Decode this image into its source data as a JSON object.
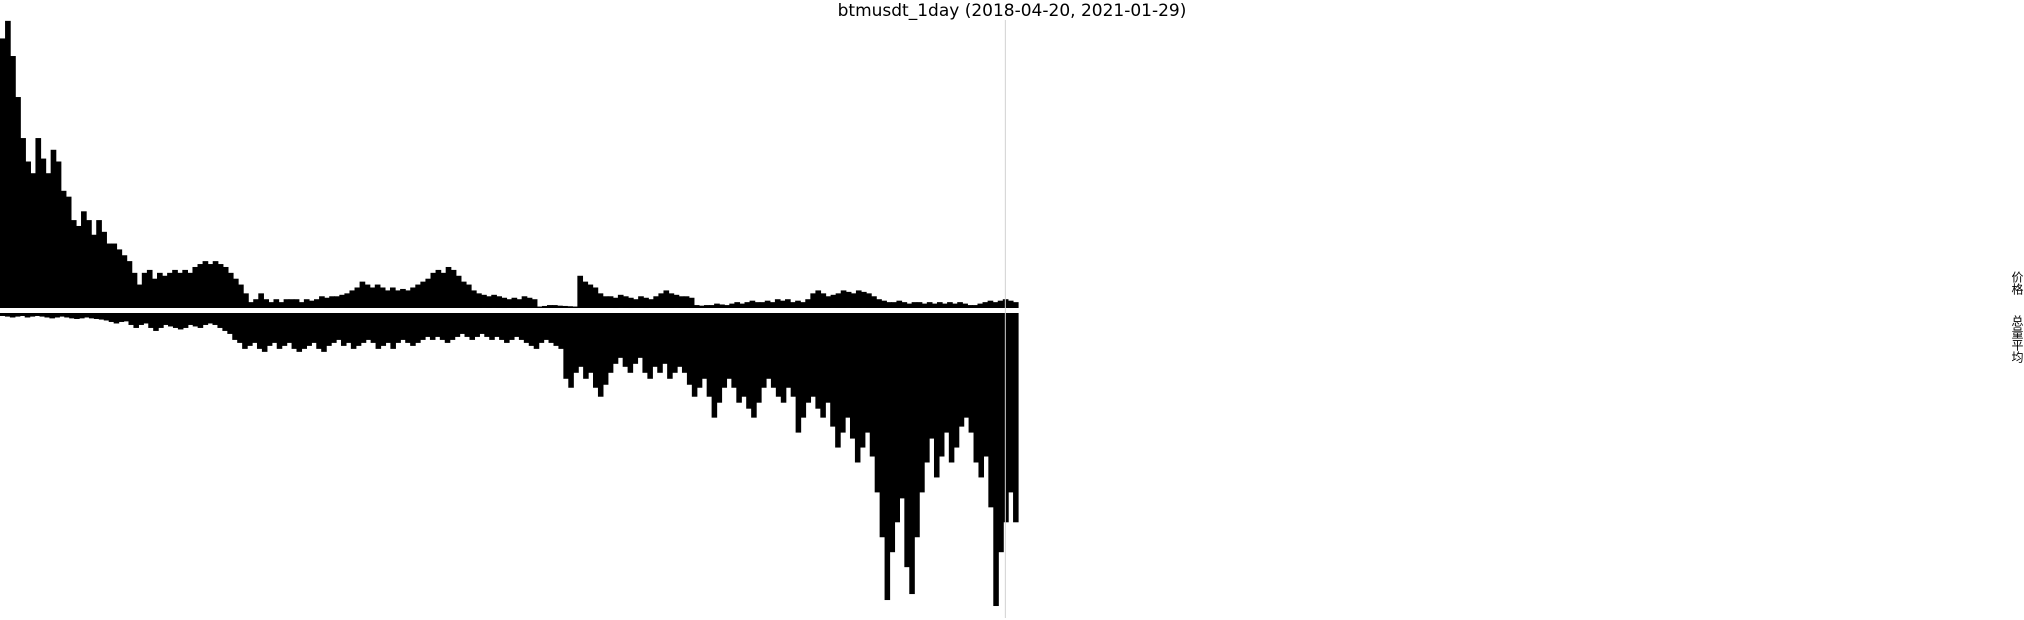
{
  "chart_data": {
    "type": "area",
    "title": "btmusdt_1day (2018-04-20, 2021-01-29)",
    "date_range": [
      "2018-04-20",
      "2021-01-29"
    ],
    "panels": [
      {
        "name": "价格",
        "direction": "up",
        "ylim": [
          0,
          1.0
        ],
        "series": [
          {
            "values": [
              0.92,
              0.98,
              0.86,
              0.72,
              0.58,
              0.5,
              0.46,
              0.58,
              0.51,
              0.46,
              0.54,
              0.5,
              0.4,
              0.38,
              0.3,
              0.28,
              0.33,
              0.3,
              0.25,
              0.3,
              0.26,
              0.22,
              0.22,
              0.2,
              0.18,
              0.16,
              0.12,
              0.08,
              0.12,
              0.13,
              0.1,
              0.12,
              0.11,
              0.12,
              0.13,
              0.12,
              0.13,
              0.12,
              0.14,
              0.15,
              0.16,
              0.15,
              0.16,
              0.15,
              0.14,
              0.12,
              0.1,
              0.08,
              0.05,
              0.02,
              0.03,
              0.05,
              0.03,
              0.02,
              0.03,
              0.02,
              0.03,
              0.03,
              0.03,
              0.02,
              0.03,
              0.025,
              0.03,
              0.04,
              0.035,
              0.04,
              0.04,
              0.045,
              0.05,
              0.06,
              0.07,
              0.09,
              0.08,
              0.07,
              0.08,
              0.07,
              0.06,
              0.07,
              0.06,
              0.065,
              0.06,
              0.07,
              0.08,
              0.09,
              0.1,
              0.12,
              0.13,
              0.12,
              0.14,
              0.13,
              0.11,
              0.09,
              0.08,
              0.06,
              0.05,
              0.045,
              0.04,
              0.045,
              0.04,
              0.035,
              0.03,
              0.035,
              0.03,
              0.04,
              0.035,
              0.03,
              0.005,
              0.007,
              0.01,
              0.01,
              0.008,
              0.007,
              0.006,
              0.005,
              0.11,
              0.09,
              0.08,
              0.07,
              0.05,
              0.04,
              0.04,
              0.035,
              0.045,
              0.04,
              0.035,
              0.03,
              0.04,
              0.035,
              0.03,
              0.04,
              0.05,
              0.06,
              0.05,
              0.045,
              0.04,
              0.04,
              0.035,
              0.01,
              0.008,
              0.01,
              0.01,
              0.015,
              0.012,
              0.01,
              0.015,
              0.02,
              0.015,
              0.02,
              0.025,
              0.02,
              0.02,
              0.025,
              0.02,
              0.03,
              0.025,
              0.03,
              0.02,
              0.025,
              0.02,
              0.03,
              0.05,
              0.06,
              0.05,
              0.04,
              0.045,
              0.05,
              0.06,
              0.055,
              0.05,
              0.06,
              0.055,
              0.05,
              0.04,
              0.03,
              0.025,
              0.02,
              0.02,
              0.025,
              0.02,
              0.015,
              0.02,
              0.02,
              0.015,
              0.02,
              0.015,
              0.02,
              0.015,
              0.02,
              0.015,
              0.02,
              0.015,
              0.01,
              0.01,
              0.015,
              0.02,
              0.025,
              0.02,
              0.025,
              0.03,
              0.025,
              0.02
            ]
          }
        ]
      },
      {
        "name": "总量平均",
        "direction": "down",
        "ylim": [
          0,
          1.0
        ],
        "series": [
          {
            "values": [
              0.01,
              0.012,
              0.015,
              0.012,
              0.01,
              0.015,
              0.012,
              0.01,
              0.012,
              0.015,
              0.018,
              0.015,
              0.012,
              0.015,
              0.018,
              0.02,
              0.018,
              0.015,
              0.018,
              0.02,
              0.022,
              0.025,
              0.03,
              0.035,
              0.03,
              0.028,
              0.04,
              0.05,
              0.04,
              0.035,
              0.05,
              0.06,
              0.05,
              0.04,
              0.045,
              0.05,
              0.055,
              0.05,
              0.04,
              0.045,
              0.05,
              0.04,
              0.035,
              0.04,
              0.05,
              0.06,
              0.07,
              0.09,
              0.1,
              0.12,
              0.11,
              0.1,
              0.12,
              0.13,
              0.11,
              0.1,
              0.12,
              0.11,
              0.1,
              0.12,
              0.13,
              0.12,
              0.11,
              0.1,
              0.12,
              0.13,
              0.11,
              0.1,
              0.09,
              0.11,
              0.1,
              0.12,
              0.11,
              0.1,
              0.09,
              0.1,
              0.12,
              0.11,
              0.1,
              0.12,
              0.1,
              0.09,
              0.1,
              0.11,
              0.1,
              0.09,
              0.08,
              0.09,
              0.08,
              0.09,
              0.1,
              0.09,
              0.08,
              0.07,
              0.08,
              0.09,
              0.08,
              0.07,
              0.08,
              0.09,
              0.08,
              0.09,
              0.1,
              0.09,
              0.08,
              0.09,
              0.1,
              0.11,
              0.12,
              0.1,
              0.09,
              0.1,
              0.11,
              0.12,
              0.22,
              0.25,
              0.2,
              0.18,
              0.22,
              0.2,
              0.25,
              0.28,
              0.24,
              0.2,
              0.17,
              0.15,
              0.18,
              0.2,
              0.17,
              0.15,
              0.2,
              0.22,
              0.18,
              0.2,
              0.17,
              0.22,
              0.2,
              0.18,
              0.2,
              0.24,
              0.28,
              0.25,
              0.22,
              0.28,
              0.35,
              0.3,
              0.25,
              0.22,
              0.25,
              0.3,
              0.28,
              0.32,
              0.35,
              0.3,
              0.25,
              0.22,
              0.25,
              0.28,
              0.3,
              0.25,
              0.28,
              0.4,
              0.35,
              0.3,
              0.28,
              0.32,
              0.35,
              0.3,
              0.38,
              0.45,
              0.4,
              0.35,
              0.42,
              0.5,
              0.45,
              0.4,
              0.48,
              0.6,
              0.75,
              0.96,
              0.8,
              0.7,
              0.62,
              0.85,
              0.94,
              0.75,
              0.6,
              0.5,
              0.42,
              0.55,
              0.48,
              0.4,
              0.5,
              0.45,
              0.38,
              0.35,
              0.4,
              0.5,
              0.55,
              0.48,
              0.65,
              0.98,
              0.8,
              0.7,
              0.6,
              0.7
            ]
          }
        ]
      }
    ],
    "markers": [
      {
        "type": "vertical-line",
        "index": 198,
        "color": "#d0d0d0"
      }
    ],
    "grid": false,
    "legend": "none"
  }
}
